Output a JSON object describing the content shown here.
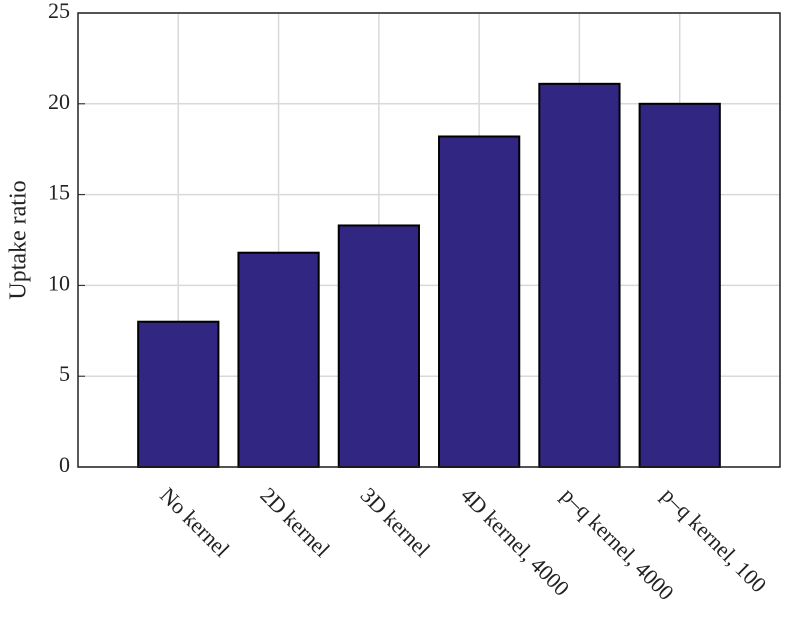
{
  "chart_data": {
    "type": "bar",
    "y_label": "Uptake ratio",
    "categories": [
      "No kernel",
      "2D kernel",
      "3D kernel",
      "4D kernel, 4000",
      "p–q kernel, 4000",
      "p–q kernel, 100"
    ],
    "values": [
      8.0,
      11.8,
      13.3,
      18.2,
      21.1,
      20.0
    ],
    "color": "#312782",
    "ylim": [
      0,
      25
    ],
    "yticks": [
      0,
      5,
      10,
      15,
      20,
      25
    ],
    "grid": true
  }
}
